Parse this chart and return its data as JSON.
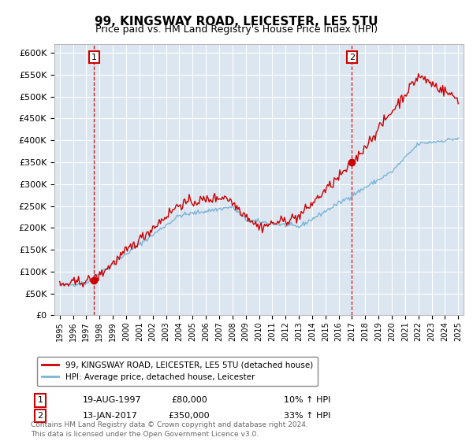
{
  "title": "99, KINGSWAY ROAD, LEICESTER, LE5 5TU",
  "subtitle": "Price paid vs. HM Land Registry's House Price Index (HPI)",
  "ylim": [
    0,
    620000
  ],
  "yticks": [
    0,
    50000,
    100000,
    150000,
    200000,
    250000,
    300000,
    350000,
    400000,
    450000,
    500000,
    550000,
    600000
  ],
  "background_color": "#dce6f1",
  "fig_bg_color": "#ffffff",
  "legend_label_red": "99, KINGSWAY ROAD, LEICESTER, LE5 5TU (detached house)",
  "legend_label_blue": "HPI: Average price, detached house, Leicester",
  "transaction1_date": "19-AUG-1997",
  "transaction1_price": "£80,000",
  "transaction1_hpi": "10% ↑ HPI",
  "transaction2_date": "13-JAN-2017",
  "transaction2_price": "£350,000",
  "transaction2_hpi": "33% ↑ HPI",
  "footer": "Contains HM Land Registry data © Crown copyright and database right 2024.\nThis data is licensed under the Open Government Licence v3.0.",
  "red_color": "#cc0000",
  "blue_color": "#7ab4d8",
  "dashed_color": "#cc0000",
  "title_fontsize": 11,
  "subtitle_fontsize": 9
}
